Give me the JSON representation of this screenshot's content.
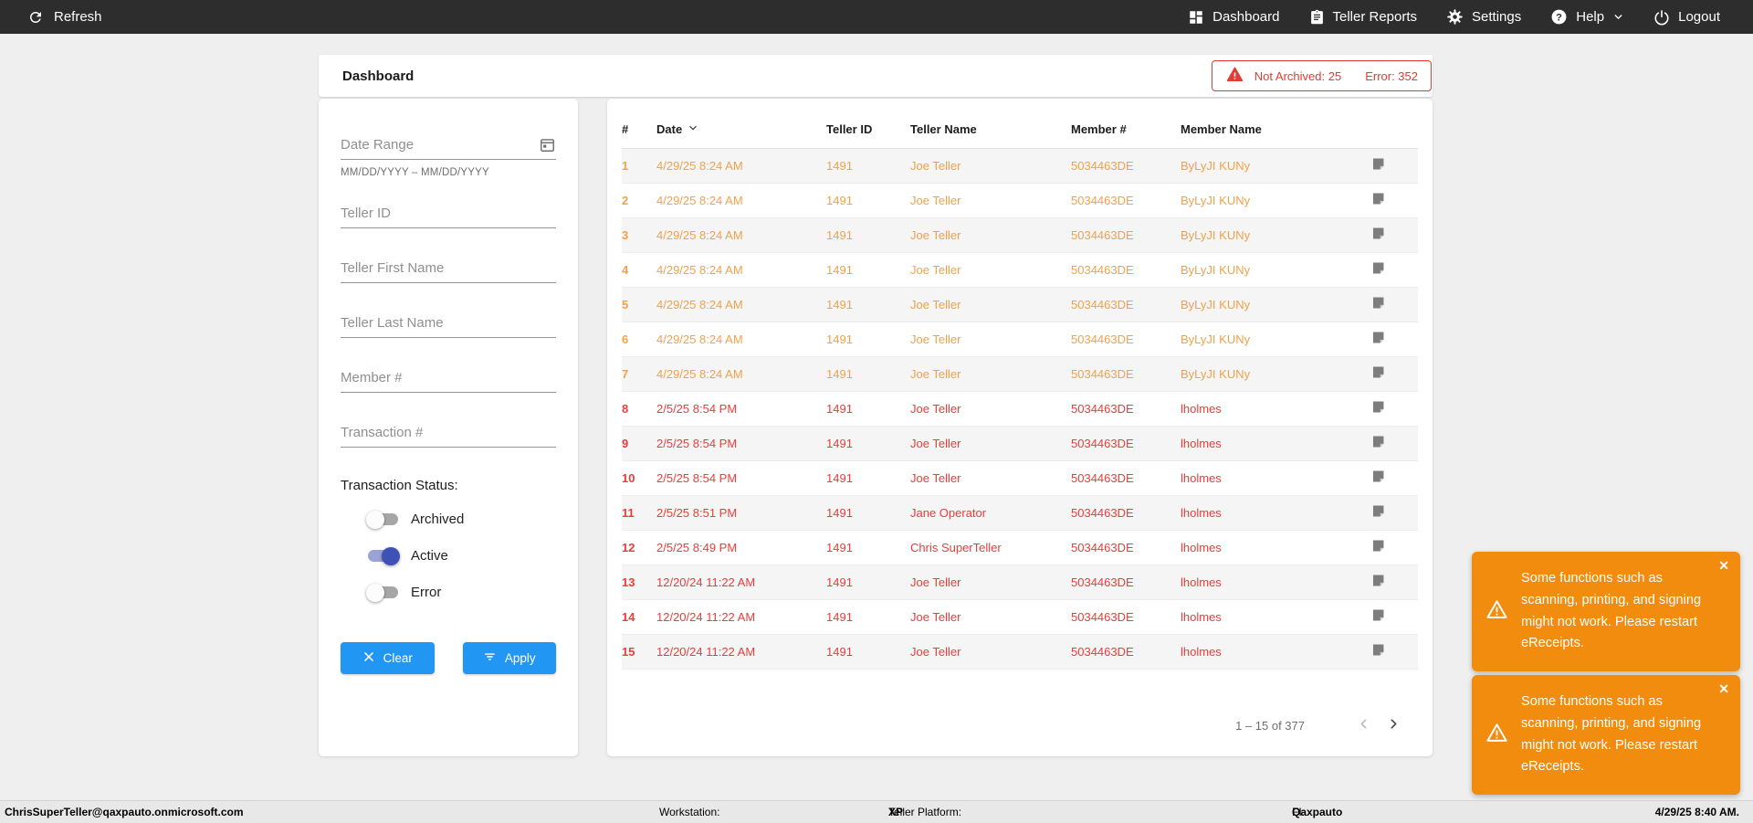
{
  "nav": {
    "refresh_label": "Refresh",
    "items": [
      {
        "label": "Dashboard"
      },
      {
        "label": "Teller Reports"
      },
      {
        "label": "Settings"
      },
      {
        "label": "Help"
      },
      {
        "label": "Logout"
      }
    ]
  },
  "header": {
    "title": "Dashboard",
    "alert": {
      "not_archived": "Not Archived: 25",
      "error": "Error: 352"
    }
  },
  "filters": {
    "date_range": {
      "placeholder": "Date Range",
      "helper": "MM/DD/YYYY – MM/DD/YYYY"
    },
    "fields": [
      "Teller ID",
      "Teller First Name",
      "Teller Last Name",
      "Member #",
      "Transaction #"
    ],
    "status_label": "Transaction Status:",
    "toggles": [
      {
        "label": "Archived",
        "on": false
      },
      {
        "label": "Active",
        "on": true
      },
      {
        "label": "Error",
        "on": false
      }
    ],
    "clear_label": "Clear",
    "apply_label": "Apply"
  },
  "table": {
    "columns": [
      "#",
      "Date",
      "Teller ID",
      "Teller Name",
      "Member #",
      "Member Name"
    ],
    "sorted_column": "Date",
    "rows": [
      {
        "num": "1",
        "date": "4/29/25 8:24 AM",
        "teller_id": "1491",
        "teller_name": "Joe Teller",
        "member_num": "5034463DE",
        "member_name": "ByLyJI KUNy",
        "status": "warning"
      },
      {
        "num": "2",
        "date": "4/29/25 8:24 AM",
        "teller_id": "1491",
        "teller_name": "Joe Teller",
        "member_num": "5034463DE",
        "member_name": "ByLyJI KUNy",
        "status": "warning"
      },
      {
        "num": "3",
        "date": "4/29/25 8:24 AM",
        "teller_id": "1491",
        "teller_name": "Joe Teller",
        "member_num": "5034463DE",
        "member_name": "ByLyJI KUNy",
        "status": "warning"
      },
      {
        "num": "4",
        "date": "4/29/25 8:24 AM",
        "teller_id": "1491",
        "teller_name": "Joe Teller",
        "member_num": "5034463DE",
        "member_name": "ByLyJI KUNy",
        "status": "warning"
      },
      {
        "num": "5",
        "date": "4/29/25 8:24 AM",
        "teller_id": "1491",
        "teller_name": "Joe Teller",
        "member_num": "5034463DE",
        "member_name": "ByLyJI KUNy",
        "status": "warning"
      },
      {
        "num": "6",
        "date": "4/29/25 8:24 AM",
        "teller_id": "1491",
        "teller_name": "Joe Teller",
        "member_num": "5034463DE",
        "member_name": "ByLyJI KUNy",
        "status": "warning"
      },
      {
        "num": "7",
        "date": "4/29/25 8:24 AM",
        "teller_id": "1491",
        "teller_name": "Joe Teller",
        "member_num": "5034463DE",
        "member_name": "ByLyJI KUNy",
        "status": "warning"
      },
      {
        "num": "8",
        "date": "2/5/25 8:54 PM",
        "teller_id": "1491",
        "teller_name": "Joe Teller",
        "member_num": "5034463DE",
        "member_name": "lholmes",
        "status": "error"
      },
      {
        "num": "9",
        "date": "2/5/25 8:54 PM",
        "teller_id": "1491",
        "teller_name": "Joe Teller",
        "member_num": "5034463DE",
        "member_name": "lholmes",
        "status": "error"
      },
      {
        "num": "10",
        "date": "2/5/25 8:54 PM",
        "teller_id": "1491",
        "teller_name": "Joe Teller",
        "member_num": "5034463DE",
        "member_name": "lholmes",
        "status": "error"
      },
      {
        "num": "11",
        "date": "2/5/25 8:51 PM",
        "teller_id": "1491",
        "teller_name": "Jane Operator",
        "member_num": "5034463DE",
        "member_name": "lholmes",
        "status": "error"
      },
      {
        "num": "12",
        "date": "2/5/25 8:49 PM",
        "teller_id": "1491",
        "teller_name": "Chris SuperTeller",
        "member_num": "5034463DE",
        "member_name": "lholmes",
        "status": "error"
      },
      {
        "num": "13",
        "date": "12/20/24 11:22 AM",
        "teller_id": "1491",
        "teller_name": "Joe Teller",
        "member_num": "5034463DE",
        "member_name": "lholmes",
        "status": "error"
      },
      {
        "num": "14",
        "date": "12/20/24 11:22 AM",
        "teller_id": "1491",
        "teller_name": "Joe Teller",
        "member_num": "5034463DE",
        "member_name": "lholmes",
        "status": "error"
      },
      {
        "num": "15",
        "date": "12/20/24 11:22 AM",
        "teller_id": "1491",
        "teller_name": "Joe Teller",
        "member_num": "5034463DE",
        "member_name": "lholmes",
        "status": "error"
      }
    ],
    "pagination_label": "1 – 15 of 377"
  },
  "toasts": [
    "Some functions such as scanning, printing, and signing might not work. Please restart eReceipts.",
    "Some functions such as scanning, printing, and signing might not work. Please restart eReceipts."
  ],
  "statusbar": {
    "user": "ChrisSuperTeller@qaxpauto.onmicrosoft.com",
    "workstation_label": "Workstation:",
    "platform_label": "Teller Platform:",
    "platform_value": "XP",
    "fi_label": "FI:",
    "fi_value": "Qaxpauto",
    "datetime": "4/29/25 8:40 AM."
  },
  "icons": {
    "close": "✕"
  },
  "colors": {
    "nav_bg": "#2D2D2D",
    "accent_blue": "#2196F3",
    "toggle_on": "#3F51B5",
    "warning_row": "#F2A14B",
    "error_row": "#EE3B3B",
    "alert_red": "#E53935",
    "toast_orange": "#F28C0E"
  }
}
